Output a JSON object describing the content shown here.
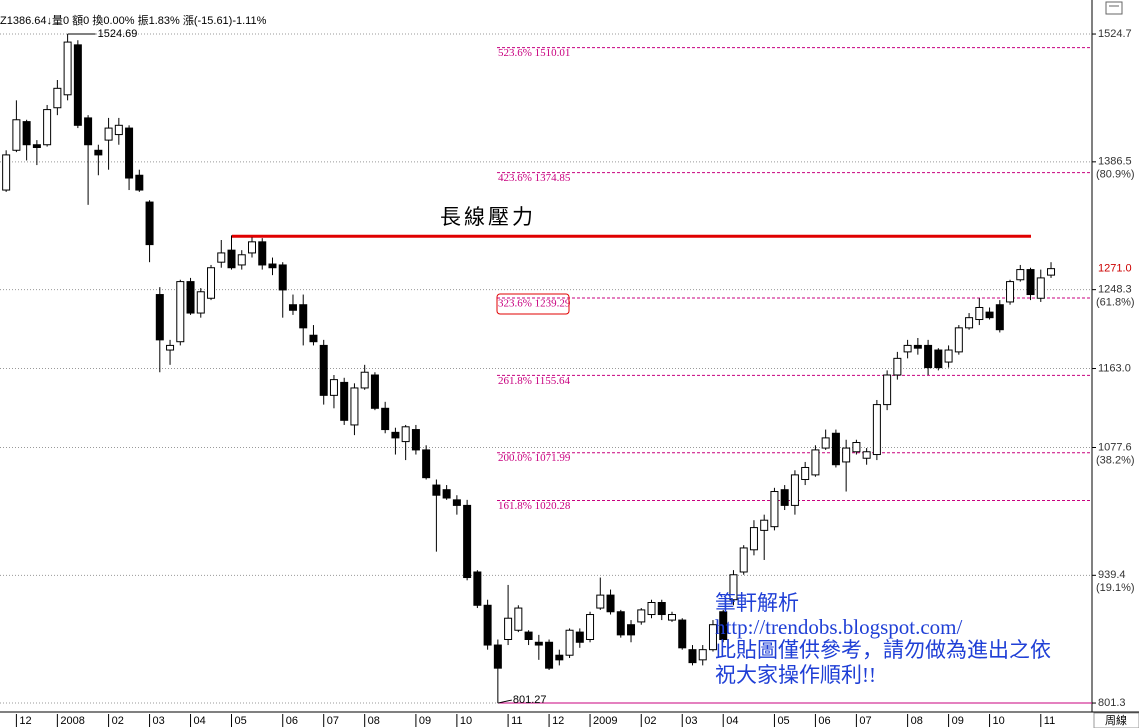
{
  "header": "Z1386.64↓量0 額0 換0.00% 振1.83% 漲(-15.61)-1.11%",
  "watermark": [
    "筆軒解析",
    "http://trendobs.blogspot.com/",
    "此貼圖僅供參考，請勿做為進出之依",
    "祝大家操作順利!!"
  ],
  "chart_data": {
    "type": "candlestick",
    "ylim": [
      791.6,
      1561.5
    ],
    "xlim": [
      -0.6,
      106
    ],
    "yticks": [
      1524.7,
      1386.5,
      1248.3,
      {
        "value": 1163,
        "label": "1163.0"
      },
      1077.6,
      939.4,
      801.3
    ],
    "retracement_labels": [
      {
        "value": 1386.5,
        "label": "(80.9%)"
      },
      {
        "value": 1248.3,
        "label": "(61.8%)"
      },
      {
        "value": 1077.6,
        "label": "(38.2%)"
      },
      {
        "value": 939.4,
        "label": "(19.1%)"
      }
    ],
    "last_price": {
      "value": 1271,
      "label": "1271.0",
      "color": "#cc0000"
    },
    "xticks": [
      {
        "value": 1,
        "label": "12"
      },
      {
        "value": 5,
        "label": "2008"
      },
      {
        "value": 10,
        "label": "02"
      },
      {
        "value": 14,
        "label": "03"
      },
      {
        "value": 18,
        "label": "04"
      },
      {
        "value": 22,
        "label": "05"
      },
      {
        "value": 27,
        "label": "06"
      },
      {
        "value": 31,
        "label": "07"
      },
      {
        "value": 35,
        "label": "08"
      },
      {
        "value": 40,
        "label": "09"
      },
      {
        "value": 44,
        "label": "10"
      },
      {
        "value": 49,
        "label": "11"
      },
      {
        "value": 53,
        "label": "12"
      },
      {
        "value": 57,
        "label": "2009"
      },
      {
        "value": 62,
        "label": "02"
      },
      {
        "value": 66,
        "label": "03"
      },
      {
        "value": 70,
        "label": "04"
      },
      {
        "value": 75,
        "label": "05"
      },
      {
        "value": 79,
        "label": "06"
      },
      {
        "value": 83,
        "label": "07"
      },
      {
        "value": 88,
        "label": "08"
      },
      {
        "value": 92,
        "label": "09"
      },
      {
        "value": 96,
        "label": "10"
      },
      {
        "value": 101,
        "label": "11"
      }
    ],
    "period_label": "周線",
    "fib_levels": [
      {
        "value": 1510.01,
        "label": "523.6% 1510.01"
      },
      {
        "value": 1374.85,
        "label": "423.6% 1374.85"
      },
      {
        "value": 1239.29,
        "label": "323.6% 1239.29",
        "highlight": true
      },
      {
        "value": 1155.64,
        "label": "261.8% 1155.64"
      },
      {
        "value": 1071.99,
        "label": "200.0% 1071.99"
      },
      {
        "value": 1020.28,
        "label": "161.8% 1020.28"
      }
    ],
    "fib_color": "#c8007f",
    "resistance": {
      "label": "長線壓力",
      "value": 1306,
      "color": "#e00000"
    },
    "grid": true,
    "ohlc": {
      "open": [
        1356,
        1399,
        1430,
        1405,
        1405,
        1445,
        1459,
        1513,
        1434,
        1399,
        1410,
        1416,
        1423,
        1372,
        1343,
        1243,
        1183,
        1192,
        1257,
        1223,
        1239,
        1278,
        1291,
        1275,
        1288,
        1300,
        1276,
        1275,
        1232,
        1232,
        1199,
        1188,
        1134,
        1148,
        1102,
        1142,
        1156,
        1120,
        1094,
        1084,
        1097,
        1075,
        1037,
        1032,
        1021,
        1015,
        943,
        907,
        864,
        870,
        880,
        878,
        867,
        867,
        853,
        853,
        878,
        870,
        904,
        918,
        900,
        886,
        889,
        897,
        910,
        891,
        891,
        859,
        848,
        859,
        900,
        913,
        943,
        967,
        988,
        992,
        1032,
        1015,
        1043,
        1048,
        1077,
        1093,
        1062,
        1073,
        1066,
        1070,
        1124,
        1156,
        1181,
        1188,
        1188,
        1183,
        1170,
        1181,
        1207,
        1216,
        1224,
        1232,
        1235,
        1259,
        1270,
        1239,
        1264
      ],
      "high": [
        1399,
        1453,
        1432,
        1410,
        1448,
        1475,
        1524.69,
        1518,
        1437,
        1405,
        1434,
        1434,
        1426,
        1378,
        1345,
        1251,
        1194,
        1259,
        1261,
        1250,
        1275,
        1302,
        1307,
        1291,
        1305,
        1304,
        1283,
        1278,
        1243,
        1243,
        1210,
        1194,
        1156,
        1153,
        1147,
        1167,
        1159,
        1127,
        1099,
        1102,
        1102,
        1080,
        1043,
        1037,
        1026,
        1021,
        945,
        913,
        870,
        929,
        907,
        880,
        875,
        870,
        859,
        882,
        882,
        900,
        937,
        924,
        902,
        891,
        904,
        913,
        913,
        900,
        893,
        864,
        864,
        891,
        902,
        945,
        972,
        999,
        1005,
        1034,
        1037,
        1053,
        1062,
        1080,
        1097,
        1097,
        1086,
        1086,
        1077,
        1129,
        1161,
        1181,
        1194,
        1196,
        1194,
        1185,
        1188,
        1210,
        1223,
        1239,
        1229,
        1237,
        1259,
        1275,
        1272,
        1270,
        1278
      ],
      "low": [
        1354,
        1397,
        1388,
        1383,
        1403,
        1437,
        1453,
        1423,
        1340,
        1372,
        1378,
        1405,
        1356,
        1354,
        1278,
        1159,
        1167,
        1188,
        1221,
        1218,
        1237,
        1272,
        1270,
        1270,
        1283,
        1270,
        1264,
        1218,
        1221,
        1188,
        1188,
        1124,
        1120,
        1102,
        1091,
        1140,
        1118,
        1093,
        1070,
        1064,
        1070,
        1043,
        965,
        1021,
        1005,
        934,
        904,
        859,
        801.27,
        864,
        878,
        864,
        848,
        837,
        842,
        850,
        861,
        867,
        902,
        897,
        872,
        867,
        886,
        893,
        891,
        889,
        859,
        842,
        842,
        857,
        867,
        907,
        940,
        961,
        956,
        988,
        1010,
        1005,
        1037,
        1046,
        1075,
        1056,
        1030,
        1070,
        1059,
        1064,
        1118,
        1151,
        1174,
        1178,
        1156,
        1161,
        1164,
        1178,
        1205,
        1210,
        1216,
        1202,
        1232,
        1257,
        1237,
        1235,
        1261
      ],
      "close": [
        1394,
        1432,
        1405,
        1402,
        1443,
        1466,
        1516,
        1426,
        1405,
        1394,
        1423,
        1426,
        1369,
        1356,
        1297,
        1194,
        1188,
        1257,
        1223,
        1246,
        1272,
        1288,
        1272,
        1286,
        1300,
        1275,
        1272,
        1248,
        1226,
        1207,
        1192,
        1134,
        1151,
        1107,
        1142,
        1159,
        1120,
        1097,
        1088,
        1100,
        1075,
        1045,
        1026,
        1023,
        1015,
        937,
        907,
        864,
        839,
        893,
        904,
        870,
        864,
        839,
        848,
        880,
        867,
        897,
        918,
        900,
        875,
        875,
        902,
        910,
        897,
        897,
        861,
        845,
        859,
        886,
        870,
        940,
        969,
        991,
        999,
        1030,
        1015,
        1048,
        1056,
        1075,
        1088,
        1059,
        1077,
        1083,
        1073,
        1124,
        1156,
        1174,
        1188,
        1185,
        1164,
        1164,
        1183,
        1207,
        1218,
        1229,
        1218,
        1205,
        1257,
        1270,
        1243,
        1261,
        1271
      ]
    },
    "high_label_index": 6,
    "low_label_index": 48
  }
}
